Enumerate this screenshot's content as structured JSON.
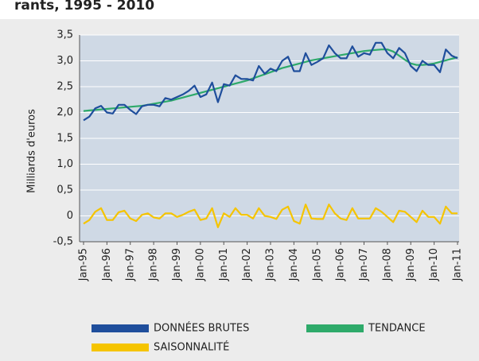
{
  "chart_data": {
    "type": "line",
    "title": "rants, 1995 - 2010",
    "y_label": "Milliards d'euros",
    "categories": [
      "Jan-95",
      null,
      null,
      null,
      "Jan-96",
      null,
      null,
      null,
      "Jan-97",
      null,
      null,
      null,
      "Jan-98",
      null,
      null,
      null,
      "Jan-99",
      null,
      null,
      null,
      "Jan-00",
      null,
      null,
      null,
      "Jan-01",
      null,
      null,
      null,
      "Jan-02",
      null,
      null,
      null,
      "Jan-03",
      null,
      null,
      null,
      "Jan-04",
      null,
      null,
      null,
      "Jan-05",
      null,
      null,
      null,
      "Jan-06",
      null,
      null,
      null,
      "Jan-07",
      null,
      null,
      null,
      "Jan-08",
      null,
      null,
      null,
      "Jan-09",
      null,
      null,
      null,
      "Jan-10",
      null,
      null,
      null,
      "Jan-11"
    ],
    "series": [
      {
        "name": "DONNÉES BRUTES",
        "color": "#1f4e9c",
        "values": [
          1.85,
          1.92,
          2.08,
          2.13,
          2.0,
          1.98,
          2.15,
          2.15,
          2.05,
          1.97,
          2.12,
          2.15,
          2.15,
          2.12,
          2.28,
          2.25,
          2.3,
          2.35,
          2.42,
          2.52,
          2.3,
          2.35,
          2.58,
          2.2,
          2.55,
          2.52,
          2.72,
          2.65,
          2.65,
          2.62,
          2.9,
          2.75,
          2.85,
          2.8,
          3.0,
          3.08,
          2.8,
          2.8,
          3.15,
          2.92,
          2.98,
          3.05,
          3.3,
          3.15,
          3.05,
          3.05,
          3.28,
          3.08,
          3.15,
          3.12,
          3.35,
          3.35,
          3.15,
          3.05,
          3.25,
          3.15,
          2.9,
          2.8,
          3.0,
          2.92,
          2.92,
          2.78,
          3.22,
          3.1,
          3.05
        ]
      },
      {
        "name": "TENDANCE",
        "color": "#2eaa6a",
        "values": [
          2.03,
          2.04,
          2.05,
          2.06,
          2.07,
          2.08,
          2.09,
          2.1,
          2.11,
          2.12,
          2.13,
          2.15,
          2.17,
          2.19,
          2.21,
          2.23,
          2.26,
          2.29,
          2.32,
          2.35,
          2.38,
          2.41,
          2.44,
          2.47,
          2.5,
          2.53,
          2.56,
          2.59,
          2.62,
          2.66,
          2.7,
          2.74,
          2.78,
          2.82,
          2.86,
          2.89,
          2.92,
          2.95,
          2.98,
          3.01,
          3.03,
          3.05,
          3.07,
          3.09,
          3.11,
          3.13,
          3.15,
          3.17,
          3.19,
          3.2,
          3.21,
          3.22,
          3.22,
          3.18,
          3.1,
          3.02,
          2.95,
          2.92,
          2.92,
          2.93,
          2.95,
          2.98,
          3.01,
          3.04,
          3.07
        ]
      },
      {
        "name": "SAISONNALITÉ",
        "color": "#f5c400",
        "values": [
          -0.15,
          -0.08,
          0.08,
          0.15,
          -0.08,
          -0.08,
          0.07,
          0.1,
          -0.05,
          -0.1,
          0.02,
          0.05,
          -0.03,
          -0.05,
          0.05,
          0.05,
          -0.02,
          0.02,
          0.08,
          0.12,
          -0.08,
          -0.05,
          0.15,
          -0.22,
          0.05,
          -0.02,
          0.15,
          0.02,
          0.02,
          -0.05,
          0.15,
          0,
          -0.02,
          -0.06,
          0.12,
          0.18,
          -0.1,
          -0.15,
          0.22,
          -0.05,
          -0.06,
          -0.06,
          0.22,
          0.05,
          -0.05,
          -0.08,
          0.15,
          -0.05,
          -0.05,
          -0.05,
          0.15,
          0.08,
          -0.02,
          -0.12,
          0.1,
          0.08,
          -0.02,
          -0.12,
          0.1,
          -0.02,
          -0.02,
          -0.15,
          0.18,
          0.05,
          0.05
        ]
      }
    ],
    "ylim": [
      -0.5,
      3.5
    ],
    "yticks": [
      {
        "value": -0.5,
        "label": "-0,5"
      },
      0,
      {
        "value": 0.5,
        "label": "0,5"
      },
      {
        "value": 1,
        "label": "1,0"
      },
      {
        "value": 1.5,
        "label": "1,5"
      },
      {
        "value": 2,
        "label": "2,0"
      },
      {
        "value": 2.5,
        "label": "2,5"
      },
      {
        "value": 3,
        "label": "3,0"
      },
      {
        "value": 3.5,
        "label": "3,5"
      }
    ],
    "grid": true
  }
}
